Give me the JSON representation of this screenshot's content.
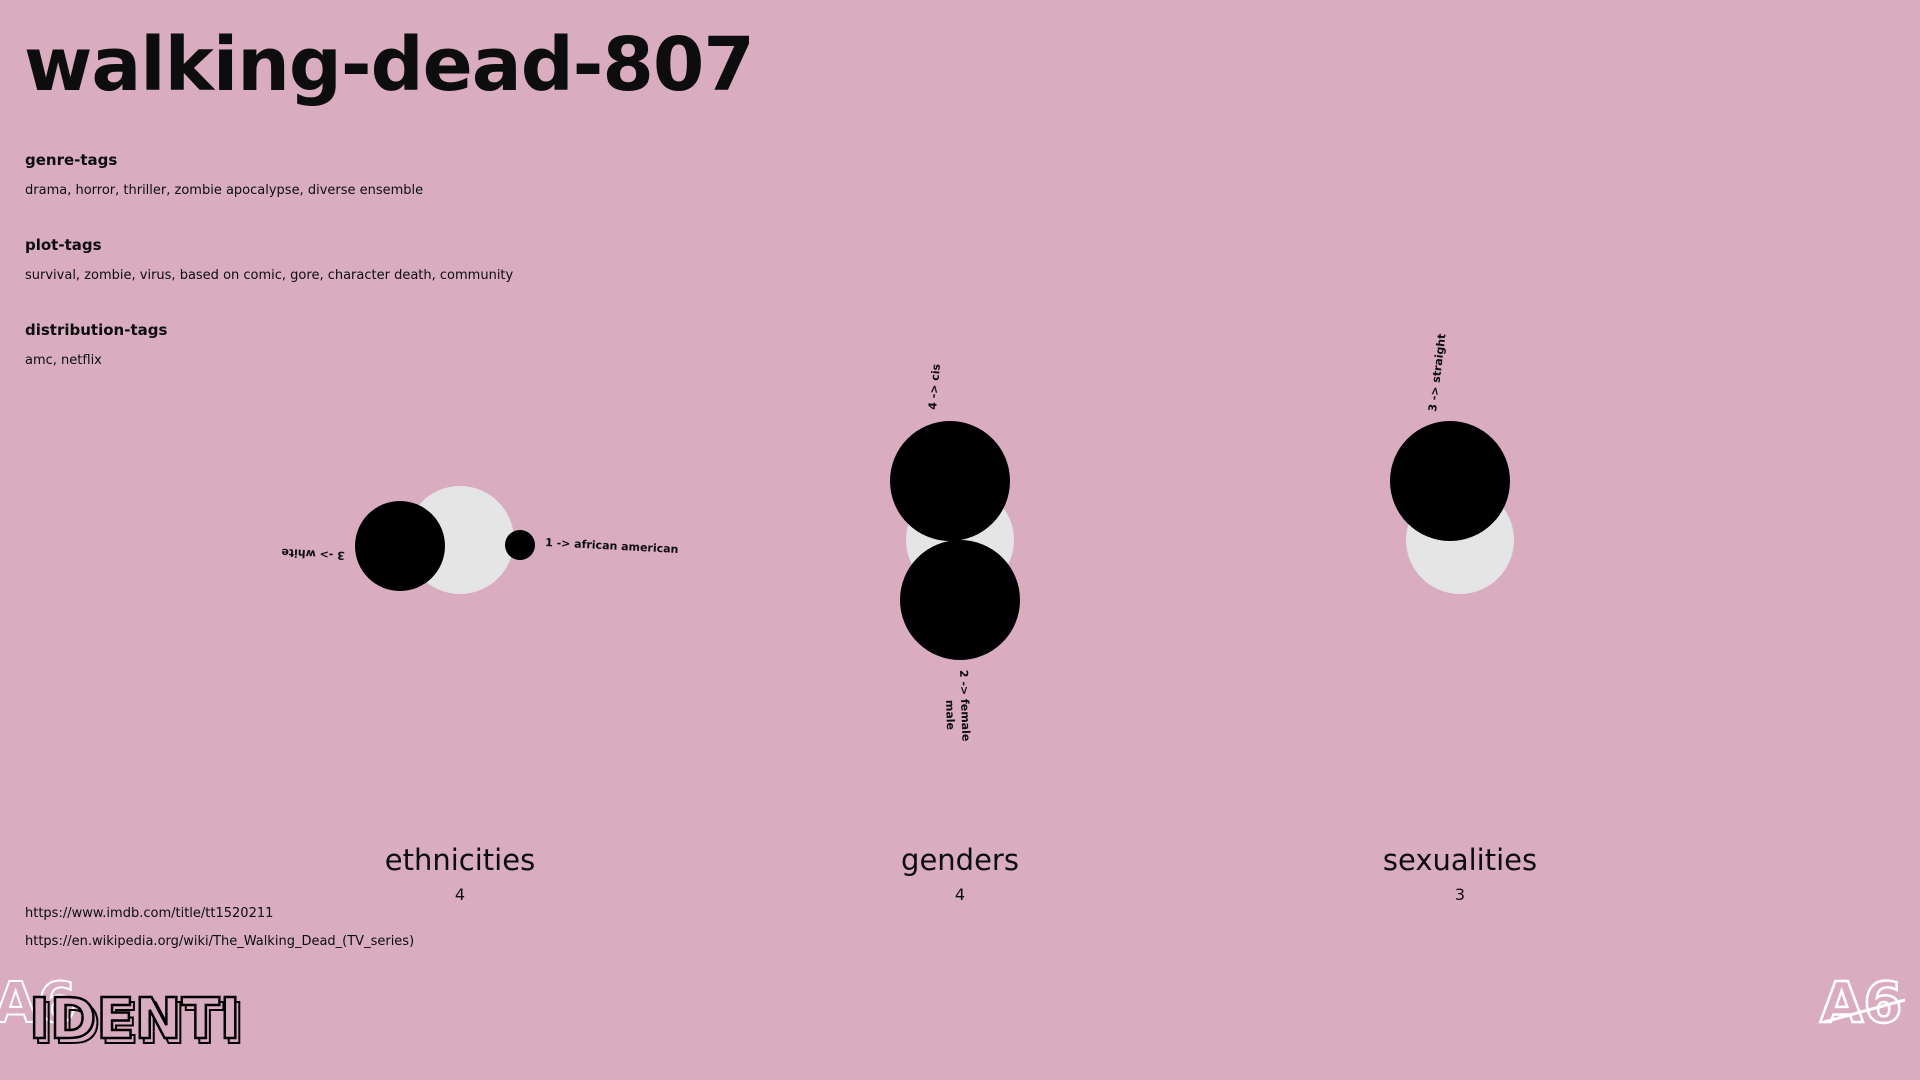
{
  "show": {
    "title": "walking-dead-807"
  },
  "tags": {
    "genre": {
      "label": "genre-tags",
      "values": "drama, horror, thriller, zombie apocalypse, diverse ensemble"
    },
    "plot": {
      "label": "plot-tags",
      "values": "survival, zombie, virus, based on comic, gore, character death, community"
    },
    "distribution": {
      "label": "distribution-tags",
      "values": "amc, netflix"
    }
  },
  "links": {
    "imdb": "https://www.imdb.com/title/tt1520211",
    "wikipedia": "https://en.wikipedia.org/wiki/The_Walking_Dead_(TV_series)"
  },
  "colors": {
    "background": "#d9adbf",
    "bubble_filled": "#000000",
    "bubble_total": "#e5e5e5",
    "text": "#0d0d0d"
  },
  "logos": {
    "left": "IDENTI",
    "corner_mark": "A6"
  },
  "chart_data": [
    {
      "type": "bubble",
      "title": "ethnicities",
      "total": 4,
      "series": [
        {
          "label": "3 -> white",
          "count": 3
        },
        {
          "label": "1 -> african american",
          "count": 1
        }
      ]
    },
    {
      "type": "bubble",
      "title": "genders",
      "total": 4,
      "series": [
        {
          "label": "4 -> cis",
          "count": 4
        },
        {
          "label": "2 -> female",
          "count": 2
        },
        {
          "label": "male",
          "count": 2
        }
      ]
    },
    {
      "type": "bubble",
      "title": "sexualities",
      "total": 3,
      "series": [
        {
          "label": "3 -> straight",
          "count": 3
        }
      ]
    }
  ]
}
